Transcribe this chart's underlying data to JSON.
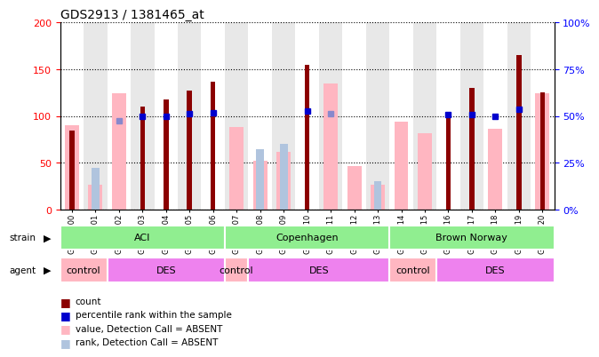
{
  "title": "GDS2913 / 1381465_at",
  "samples": [
    "GSM92200",
    "GSM92201",
    "GSM92202",
    "GSM92203",
    "GSM92204",
    "GSM92205",
    "GSM92206",
    "GSM92207",
    "GSM92208",
    "GSM92209",
    "GSM92210",
    "GSM92211",
    "GSM92212",
    "GSM92213",
    "GSM92214",
    "GSM92215",
    "GSM92216",
    "GSM92217",
    "GSM92218",
    "GSM92219",
    "GSM92220"
  ],
  "count": [
    85,
    null,
    null,
    110,
    118,
    127,
    137,
    null,
    null,
    null,
    155,
    null,
    null,
    null,
    null,
    null,
    103,
    130,
    null,
    165,
    125
  ],
  "rank_left": [
    null,
    null,
    null,
    100,
    100,
    103,
    104,
    null,
    null,
    null,
    105,
    null,
    null,
    null,
    null,
    null,
    102,
    102,
    100,
    107,
    null
  ],
  "pink_value": [
    90,
    27,
    124,
    null,
    null,
    null,
    null,
    88,
    52,
    62,
    null,
    135,
    47,
    27,
    94,
    82,
    null,
    null,
    86,
    null,
    124
  ],
  "pink_rank": [
    null,
    45,
    null,
    null,
    null,
    null,
    null,
    null,
    65,
    70,
    null,
    null,
    null,
    30,
    null,
    null,
    null,
    null,
    null,
    null,
    null
  ],
  "blue_rank_absent": [
    null,
    null,
    95,
    null,
    null,
    null,
    null,
    null,
    null,
    null,
    null,
    103,
    null,
    null,
    null,
    null,
    null,
    null,
    null,
    null,
    null
  ],
  "strain_groups": [
    {
      "label": "ACI",
      "start": 0,
      "end": 6
    },
    {
      "label": "Copenhagen",
      "start": 7,
      "end": 13
    },
    {
      "label": "Brown Norway",
      "start": 14,
      "end": 20
    }
  ],
  "agent_groups": [
    {
      "label": "control",
      "start": 0,
      "end": 1,
      "color": "#FFB6C1"
    },
    {
      "label": "DES",
      "start": 2,
      "end": 6,
      "color": "#EE82EE"
    },
    {
      "label": "control",
      "start": 7,
      "end": 7,
      "color": "#FFB6C1"
    },
    {
      "label": "DES",
      "start": 8,
      "end": 13,
      "color": "#EE82EE"
    },
    {
      "label": "control",
      "start": 14,
      "end": 15,
      "color": "#FFB6C1"
    },
    {
      "label": "DES",
      "start": 16,
      "end": 20,
      "color": "#EE82EE"
    }
  ],
  "ylim_left": [
    0,
    200
  ],
  "yticks_left": [
    0,
    50,
    100,
    150,
    200
  ],
  "yticks_right": [
    0,
    25,
    50,
    75,
    100
  ],
  "count_color": "#8B0000",
  "blue_color": "#0000CD",
  "blue_absent_color": "#8888CC",
  "pink_value_color": "#FFB6C1",
  "pink_rank_color": "#B0C4DE",
  "strain_color": "#90EE90",
  "control_color": "#FFB6C1",
  "des_color": "#EE82EE"
}
